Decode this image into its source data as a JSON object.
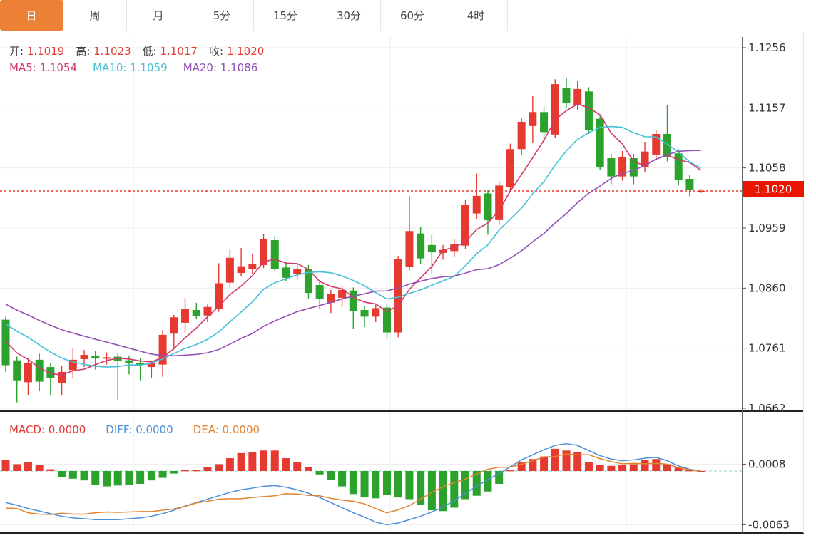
{
  "tabs": {
    "items": [
      {
        "name": "day",
        "label": "日",
        "selected": true
      },
      {
        "name": "week",
        "label": "周",
        "selected": false
      },
      {
        "name": "month",
        "label": "月",
        "selected": false
      },
      {
        "name": "5min",
        "label": "5分",
        "selected": false
      },
      {
        "name": "15min",
        "label": "15分",
        "selected": false
      },
      {
        "name": "30min",
        "label": "30分",
        "selected": false
      },
      {
        "name": "60min",
        "label": "60分",
        "selected": false
      },
      {
        "name": "4hour",
        "label": "4时",
        "selected": false
      }
    ]
  },
  "legend": {
    "ohlc": [
      {
        "name": "ohlc-open",
        "label": "开:",
        "value": "1.1019"
      },
      {
        "name": "ohlc-high",
        "label": "高:",
        "value": "1.1023"
      },
      {
        "name": "ohlc-low",
        "label": "低:",
        "value": "1.1017"
      },
      {
        "name": "ohlc-close",
        "label": "收:",
        "value": "1.1020"
      }
    ],
    "ma": [
      {
        "name": "ma5-value",
        "label": "MA5:",
        "value": "1.1054",
        "color": "#d23a6a"
      },
      {
        "name": "ma10-value",
        "label": "MA10:",
        "value": "1.1059",
        "color": "#43c0d6"
      },
      {
        "name": "ma20-value",
        "label": "MA20:",
        "value": "1.1086",
        "color": "#9450b8"
      }
    ],
    "macd": [
      {
        "name": "macd-value",
        "label": "MACD:",
        "value": "0.0000",
        "color": "#e23b35"
      },
      {
        "name": "diff-value",
        "label": "DIFF:",
        "value": "0.0000",
        "color": "#4a90d9"
      },
      {
        "name": "dea-value",
        "label": "DEA:",
        "value": "0.0000",
        "color": "#e2842e"
      }
    ]
  },
  "price_axis": {
    "current": {
      "label": "1.1020",
      "value": 1.102
    }
  },
  "colors": {
    "up": "#e63a30",
    "down": "#2aa22b",
    "price_line": "#e6392f",
    "badge": "#ea1500",
    "macd_zero": "#8fd4c4",
    "diff": "#4a90d9",
    "dea": "#e2842e",
    "ohlc_value": "#e23b35",
    "accent_tab": "#ec8136"
  },
  "chart_data": {
    "type": "candlestick",
    "price_panel": {
      "axis_ticks": [
        {
          "label": "1.1256",
          "value": 1.1256
        },
        {
          "label": "1.1157",
          "value": 1.1157
        },
        {
          "label": "1.1058",
          "value": 1.1058
        },
        {
          "label": "1.0959",
          "value": 1.0959
        },
        {
          "label": "1.0860",
          "value": 1.086
        },
        {
          "label": "1.0761",
          "value": 1.0761
        },
        {
          "label": "1.0662",
          "value": 1.0662
        }
      ],
      "price_line": 1.102,
      "ma_periods": [
        5,
        10,
        20
      ],
      "pre_closes": [
        1.0915,
        1.0905,
        1.0895,
        1.0885,
        1.0875,
        1.0865,
        1.0855,
        1.085,
        1.0846,
        1.0842,
        1.0838,
        1.0836,
        1.0834,
        1.0832,
        1.083,
        1.082,
        1.0805,
        1.079,
        1.0775,
        1.076
      ],
      "ohlc": [
        [
          1.0808,
          1.0813,
          1.0722,
          1.0733
        ],
        [
          1.0741,
          1.0747,
          1.0672,
          1.0708
        ],
        [
          1.0705,
          1.0745,
          1.0684,
          1.0737
        ],
        [
          1.0742,
          1.0752,
          1.069,
          1.0706
        ],
        [
          1.073,
          1.0736,
          1.0683,
          1.0712
        ],
        [
          1.0704,
          1.0732,
          1.0684,
          1.0722
        ],
        [
          1.0725,
          1.0762,
          1.0712,
          1.0742
        ],
        [
          1.0743,
          1.0758,
          1.073,
          1.075
        ],
        [
          1.0748,
          1.0756,
          1.0726,
          1.0744
        ],
        [
          1.0744,
          1.0754,
          1.0734,
          1.0746
        ],
        [
          1.0747,
          1.0753,
          1.0676,
          1.074
        ],
        [
          1.0741,
          1.0749,
          1.0718,
          1.0736
        ],
        [
          1.0737,
          1.0744,
          1.0708,
          1.0734
        ],
        [
          1.073,
          1.0741,
          1.0712,
          1.0736
        ],
        [
          1.0734,
          1.0791,
          1.0714,
          1.0783
        ],
        [
          1.0785,
          1.0816,
          1.0759,
          1.0812
        ],
        [
          1.0803,
          1.0844,
          1.0786,
          1.0826
        ],
        [
          1.0824,
          1.0836,
          1.0809,
          1.0814
        ],
        [
          1.0815,
          1.0833,
          1.0804,
          1.0829
        ],
        [
          1.0826,
          1.0901,
          1.0821,
          1.0868
        ],
        [
          1.0869,
          1.0924,
          1.0861,
          1.091
        ],
        [
          1.0885,
          1.0926,
          1.0879,
          1.0896
        ],
        [
          1.0892,
          1.0917,
          1.0884,
          1.09
        ],
        [
          1.0898,
          1.0949,
          1.0893,
          1.0941
        ],
        [
          1.0939,
          1.0946,
          1.0887,
          1.0892
        ],
        [
          1.0894,
          1.0903,
          1.0871,
          1.0877
        ],
        [
          1.0883,
          1.0899,
          1.0874,
          1.0892
        ],
        [
          1.0891,
          1.0898,
          1.0843,
          1.0852
        ],
        [
          1.0865,
          1.0873,
          1.0825,
          1.0842
        ],
        [
          1.0836,
          1.0857,
          1.0819,
          1.0851
        ],
        [
          1.0844,
          1.0863,
          1.0829,
          1.0857
        ],
        [
          1.0856,
          1.0861,
          1.0793,
          1.0822
        ],
        [
          1.0824,
          1.0831,
          1.0796,
          1.0813
        ],
        [
          1.0813,
          1.0833,
          1.0804,
          1.0827
        ],
        [
          1.0828,
          1.0835,
          1.0776,
          1.0787
        ],
        [
          1.0787,
          1.0913,
          1.0779,
          1.0908
        ],
        [
          1.0895,
          1.1012,
          1.0889,
          1.0954
        ],
        [
          1.095,
          1.0961,
          1.0899,
          1.0909
        ],
        [
          1.0931,
          1.0948,
          1.0884,
          1.0919
        ],
        [
          1.0918,
          1.0931,
          1.0907,
          1.0923
        ],
        [
          1.0921,
          1.0941,
          1.0911,
          1.0932
        ],
        [
          1.093,
          1.1006,
          1.0924,
          1.0997
        ],
        [
          1.0983,
          1.1049,
          1.0974,
          1.1012
        ],
        [
          1.1016,
          1.1021,
          1.0948,
          1.0972
        ],
        [
          1.0972,
          1.1036,
          1.0964,
          1.1029
        ],
        [
          1.1027,
          1.1098,
          1.1019,
          1.1089
        ],
        [
          1.1089,
          1.1141,
          1.1079,
          1.1134
        ],
        [
          1.1127,
          1.1176,
          1.1099,
          1.115
        ],
        [
          1.115,
          1.1159,
          1.1102,
          1.1117
        ],
        [
          1.1113,
          1.1204,
          1.1107,
          1.1196
        ],
        [
          1.119,
          1.1206,
          1.1157,
          1.1165
        ],
        [
          1.1161,
          1.1201,
          1.1154,
          1.1188
        ],
        [
          1.1184,
          1.1191,
          1.1114,
          1.112
        ],
        [
          1.1139,
          1.1145,
          1.1054,
          1.1059
        ],
        [
          1.1074,
          1.1081,
          1.1031,
          1.1044
        ],
        [
          1.1044,
          1.1086,
          1.1037,
          1.1076
        ],
        [
          1.1074,
          1.1081,
          1.1031,
          1.1044
        ],
        [
          1.1059,
          1.1101,
          1.1051,
          1.1085
        ],
        [
          1.108,
          1.1121,
          1.1074,
          1.1114
        ],
        [
          1.1114,
          1.1162,
          1.1069,
          1.1076
        ],
        [
          1.1082,
          1.1089,
          1.1029,
          1.1038
        ],
        [
          1.104,
          1.1047,
          1.1011,
          1.1022
        ],
        [
          1.1019,
          1.1023,
          1.1017,
          1.102
        ]
      ]
    },
    "macd_panel": {
      "axis_ticks": [
        {
          "label": "0.0008",
          "value": 0.0008
        },
        {
          "label": "-0.0063",
          "value": -0.0063
        }
      ],
      "hist": [
        0.0013,
        0.0008,
        0.001,
        0.0007,
        0.0002,
        -0.0007,
        -0.0009,
        -0.0011,
        -0.0016,
        -0.0018,
        -0.0017,
        -0.0016,
        -0.0015,
        -0.0011,
        -0.0008,
        -0.0003,
        0.0001,
        0.0001,
        0.0005,
        0.0008,
        0.0015,
        0.0021,
        0.0022,
        0.0024,
        0.0024,
        0.0015,
        0.001,
        0.0005,
        -0.0004,
        -0.001,
        -0.0018,
        -0.0027,
        -0.0031,
        -0.0032,
        -0.0028,
        -0.0031,
        -0.0033,
        -0.004,
        -0.0046,
        -0.0047,
        -0.0043,
        -0.0033,
        -0.0029,
        -0.0024,
        -0.0015,
        0.0001,
        0.001,
        0.0014,
        0.0017,
        0.0026,
        0.0024,
        0.0022,
        0.001,
        0.0007,
        0.0006,
        0.0007,
        0.0008,
        0.0013,
        0.0014,
        0.0008,
        0.0004,
        0.0001,
        0.0
      ],
      "diff": [
        -0.0037,
        -0.004,
        -0.0044,
        -0.0047,
        -0.005,
        -0.0053,
        -0.0055,
        -0.0056,
        -0.0057,
        -0.0057,
        -0.0057,
        -0.0056,
        -0.0055,
        -0.0053,
        -0.005,
        -0.0046,
        -0.0041,
        -0.0037,
        -0.0033,
        -0.0029,
        -0.0025,
        -0.0022,
        -0.002,
        -0.0018,
        -0.0017,
        -0.0019,
        -0.0022,
        -0.0026,
        -0.0031,
        -0.0037,
        -0.0043,
        -0.0049,
        -0.0054,
        -0.006,
        -0.0063,
        -0.0061,
        -0.0057,
        -0.0053,
        -0.0048,
        -0.0042,
        -0.0035,
        -0.0026,
        -0.0018,
        -0.001,
        -0.0003,
        0.0005,
        0.0013,
        0.0019,
        0.0025,
        0.003,
        0.0032,
        0.003,
        0.0024,
        0.0018,
        0.0014,
        0.0012,
        0.0013,
        0.0015,
        0.0016,
        0.0012,
        0.0006,
        0.0002,
        0.0
      ]
    },
    "grid_vertical_x": [
      187,
      547,
      878
    ]
  }
}
